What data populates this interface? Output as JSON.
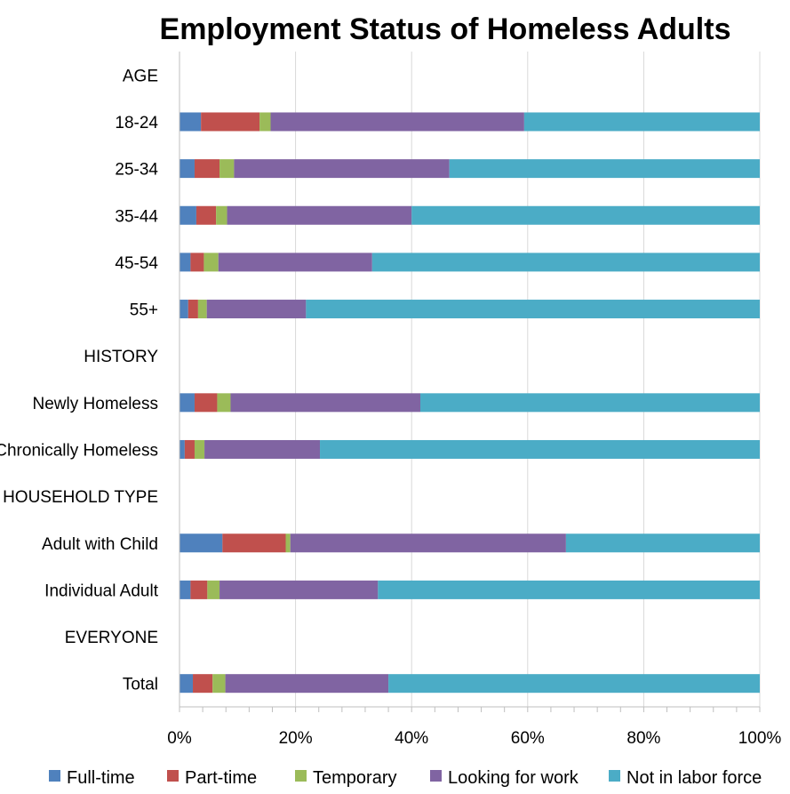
{
  "chart_data": {
    "type": "bar",
    "orientation": "horizontal",
    "stacked": "percent",
    "title": "Employment Status of Homeless Adults",
    "categories": [
      "AGE",
      "18-24",
      "25-34",
      "35-44",
      "45-54",
      "55+",
      "HISTORY",
      "Newly Homeless",
      "Chronically Homeless",
      "HOUSEHOLD TYPE",
      "Adult with Child",
      "Individual Adult",
      "EVERYONE",
      "Total"
    ],
    "series": [
      {
        "name": "Full-time",
        "color": "#4f81bd",
        "values": [
          0,
          3.7,
          2.6,
          2.9,
          1.9,
          1.5,
          0,
          2.6,
          0.9,
          0,
          7.4,
          1.9,
          0,
          2.3
        ]
      },
      {
        "name": "Part-time",
        "color": "#c0504d",
        "values": [
          0,
          10.1,
          4.3,
          3.4,
          2.3,
          1.7,
          0,
          3.9,
          1.7,
          0,
          10.9,
          2.9,
          0,
          3.4
        ]
      },
      {
        "name": "Temporary",
        "color": "#9bbb59",
        "values": [
          0,
          1.9,
          2.5,
          1.9,
          2.5,
          1.5,
          0,
          2.3,
          1.7,
          0,
          0.8,
          2.1,
          0,
          2.2
        ]
      },
      {
        "name": "Looking for work",
        "color": "#8064a2",
        "values": [
          0,
          43.7,
          37.1,
          31.8,
          26.5,
          17.1,
          0,
          32.7,
          19.9,
          0,
          47.5,
          27.3,
          0,
          28.1
        ]
      },
      {
        "name": "Not in labor force",
        "color": "#4bacc6",
        "values": [
          0,
          40.6,
          53.5,
          60.0,
          66.8,
          78.2,
          0,
          58.5,
          75.8,
          0,
          33.4,
          65.8,
          0,
          64.0
        ]
      }
    ],
    "xlim": [
      0,
      100
    ],
    "xticks": [
      "0%",
      "20%",
      "40%",
      "60%",
      "80%",
      "100%"
    ],
    "grid": "vertical",
    "legend_position": "bottom"
  }
}
